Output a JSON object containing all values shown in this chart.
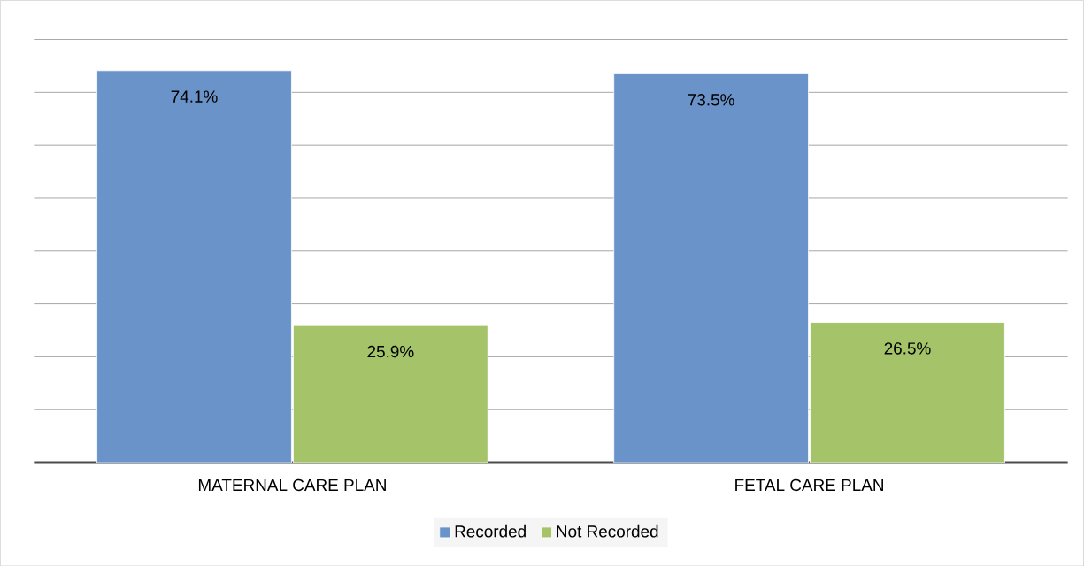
{
  "chart_data": {
    "type": "bar",
    "categories": [
      "MATERNAL CARE PLAN",
      "FETAL CARE PLAN"
    ],
    "series": [
      {
        "name": "Recorded",
        "color": "#6a93c9",
        "values": [
          74.1,
          73.5
        ],
        "value_labels": [
          "74.1%",
          "73.5%"
        ]
      },
      {
        "name": "Not Recorded",
        "color": "#a5c46a",
        "values": [
          25.9,
          26.5
        ],
        "value_labels": [
          "25.9%",
          "26.5%"
        ]
      }
    ],
    "grid": "y",
    "legend": "bottom",
    "tick_labels": "x"
  }
}
